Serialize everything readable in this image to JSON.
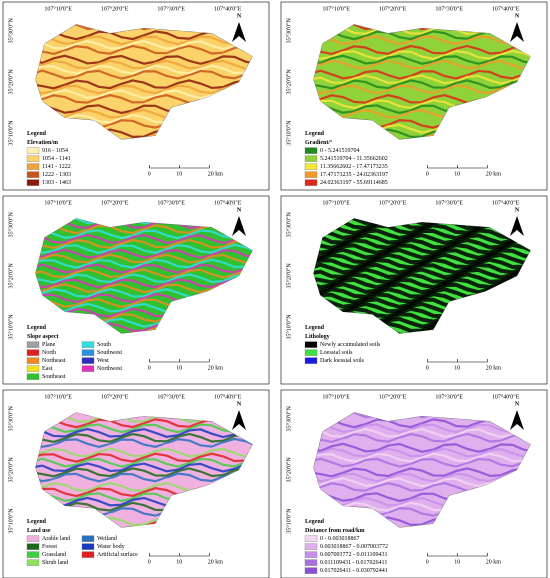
{
  "graticule": {
    "lon": [
      "107°10'0\"E",
      "107°20'0\"E",
      "107°30'0\"E",
      "107°40'0\"E"
    ],
    "lat": [
      "35°30'0\"N",
      "35°20'0\"N",
      "35°10'0\"N"
    ]
  },
  "north": "N",
  "scale_bar": [
    "0",
    "10",
    "20 km"
  ],
  "panels": [
    {
      "legend": "Legend",
      "subtitle": "Elevation/m",
      "items": [
        {
          "label": "916 - 1054",
          "color": "#fff2b0"
        },
        {
          "label": "1054 - 1141",
          "color": "#fcd36b"
        },
        {
          "label": "1141 - 1222",
          "color": "#f0a33a"
        },
        {
          "label": "1222 - 1303",
          "color": "#c8561a"
        },
        {
          "label": "1303 - 1463",
          "color": "#8b1a0a"
        }
      ]
    },
    {
      "legend": "Legend",
      "subtitle": "Gradient/°",
      "items": [
        {
          "label": "0 - 5.241519704",
          "color": "#1f8a1f"
        },
        {
          "label": "5.241519704 - 11.35662602",
          "color": "#8fd23a"
        },
        {
          "label": "11.35662602 - 17.47173235",
          "color": "#f5e63a"
        },
        {
          "label": "17.47173235 - 24.02363197",
          "color": "#f59a2a"
        },
        {
          "label": "24.02363197 - 55.69114685",
          "color": "#e0261a"
        }
      ]
    },
    {
      "legend": "Legend",
      "subtitle": "Slope aspect",
      "items": [
        {
          "label": "Plane",
          "color": "#a0a0a0"
        },
        {
          "label": "North",
          "color": "#e02020"
        },
        {
          "label": "Northeast",
          "color": "#f08a20"
        },
        {
          "label": "East",
          "color": "#f0e020"
        },
        {
          "label": "Southeast",
          "color": "#30c030"
        },
        {
          "label": "South",
          "color": "#30e0e0"
        },
        {
          "label": "Southwest",
          "color": "#2a90e0"
        },
        {
          "label": "West",
          "color": "#3030c0"
        },
        {
          "label": "Northwest",
          "color": "#e030c0"
        }
      ]
    },
    {
      "legend": "Legend",
      "subtitle": "Lithology",
      "items": [
        {
          "label": "Newly accumulated soils",
          "color": "#000000"
        },
        {
          "label": "Loessial soils",
          "color": "#3fe03f"
        },
        {
          "label": "Dark loessial soils",
          "color": "#1a1ae0"
        }
      ]
    },
    {
      "legend": "Legend",
      "subtitle": "Land use",
      "items": [
        {
          "label": "Arable land",
          "color": "#f0b0e0"
        },
        {
          "label": "Forest",
          "color": "#1a6a1a"
        },
        {
          "label": "Grassland",
          "color": "#3fd03f"
        },
        {
          "label": "Shrub land",
          "color": "#90e060"
        },
        {
          "label": "Wetland",
          "color": "#2a70c0"
        },
        {
          "label": "Water body",
          "color": "#1a3ac0"
        },
        {
          "label": "Artificial surface",
          "color": "#e02020"
        }
      ]
    },
    {
      "legend": "Legend",
      "subtitle": "Distance from road/km",
      "items": [
        {
          "label": "0 - 0.003018867",
          "color": "#f2d6f2"
        },
        {
          "label": "0.003018867 - 0.007003772",
          "color": "#e0b0ee"
        },
        {
          "label": "0.007003772 - 0.011109431",
          "color": "#c890ea"
        },
        {
          "label": "0.011109431 - 0.017026411",
          "color": "#a970e0"
        },
        {
          "label": "0.017026411 - 0.030792441",
          "color": "#8a4fd6"
        }
      ]
    }
  ]
}
